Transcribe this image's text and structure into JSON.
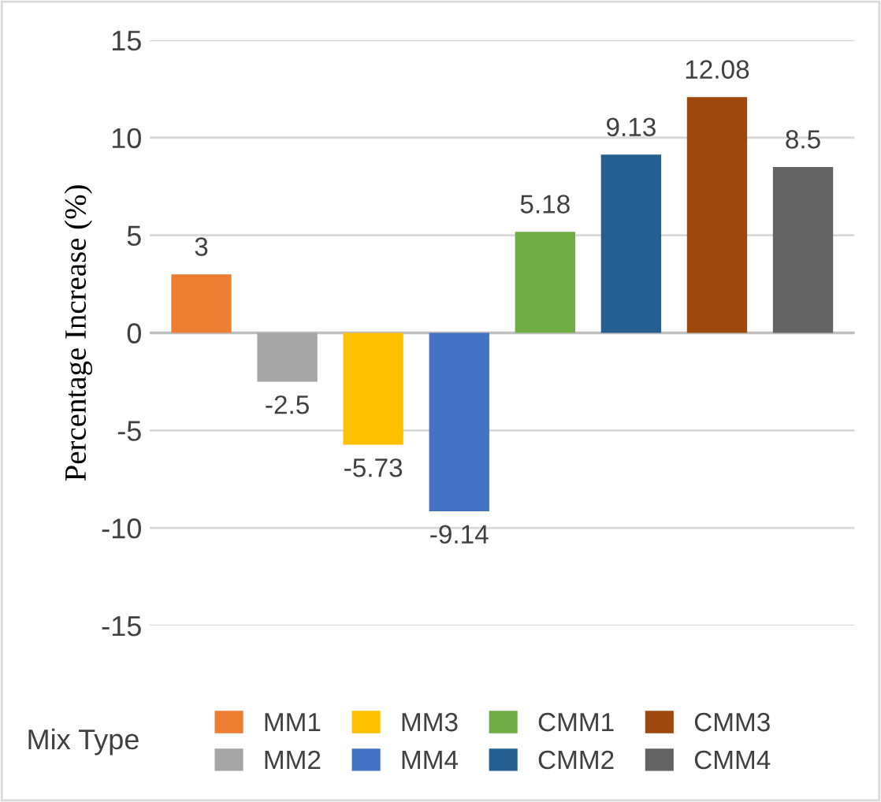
{
  "chart_data": {
    "type": "bar",
    "ylabel": "Percentage Increase (%)",
    "legend_title": "Mix Type",
    "categories": [
      null,
      null,
      null,
      null,
      null,
      null,
      null,
      null
    ],
    "series": [
      {
        "name": "MM1",
        "color": "#ed7d31",
        "values": [
          3,
          null,
          null,
          null,
          null,
          null,
          null,
          null
        ]
      },
      {
        "name": "MM2",
        "color": "#a5a5a5",
        "values": [
          null,
          -2.5,
          null,
          null,
          null,
          null,
          null,
          null
        ]
      },
      {
        "name": "MM3",
        "color": "#ffc000",
        "values": [
          null,
          null,
          -5.73,
          null,
          null,
          null,
          null,
          null
        ]
      },
      {
        "name": "MM4",
        "color": "#4472c4",
        "values": [
          null,
          null,
          null,
          -9.14,
          null,
          null,
          null,
          null
        ]
      },
      {
        "name": "CMM1",
        "color": "#70ad47",
        "values": [
          null,
          null,
          null,
          null,
          5.18,
          null,
          null,
          null
        ]
      },
      {
        "name": "CMM2",
        "color": "#255e91",
        "values": [
          null,
          null,
          null,
          null,
          null,
          9.13,
          null,
          null
        ]
      },
      {
        "name": "CMM3",
        "color": "#9e480e",
        "values": [
          null,
          null,
          null,
          null,
          null,
          null,
          12.08,
          null
        ]
      },
      {
        "name": "CMM4",
        "color": "#636363",
        "values": [
          null,
          null,
          null,
          null,
          null,
          null,
          null,
          8.5
        ]
      }
    ],
    "ylim": [
      -15,
      15
    ],
    "yticks": [
      -15,
      -10,
      -5,
      0,
      5,
      10,
      15
    ],
    "grid": "y",
    "legend": "bottom",
    "tick_labels": "y",
    "data_labels": true
  }
}
